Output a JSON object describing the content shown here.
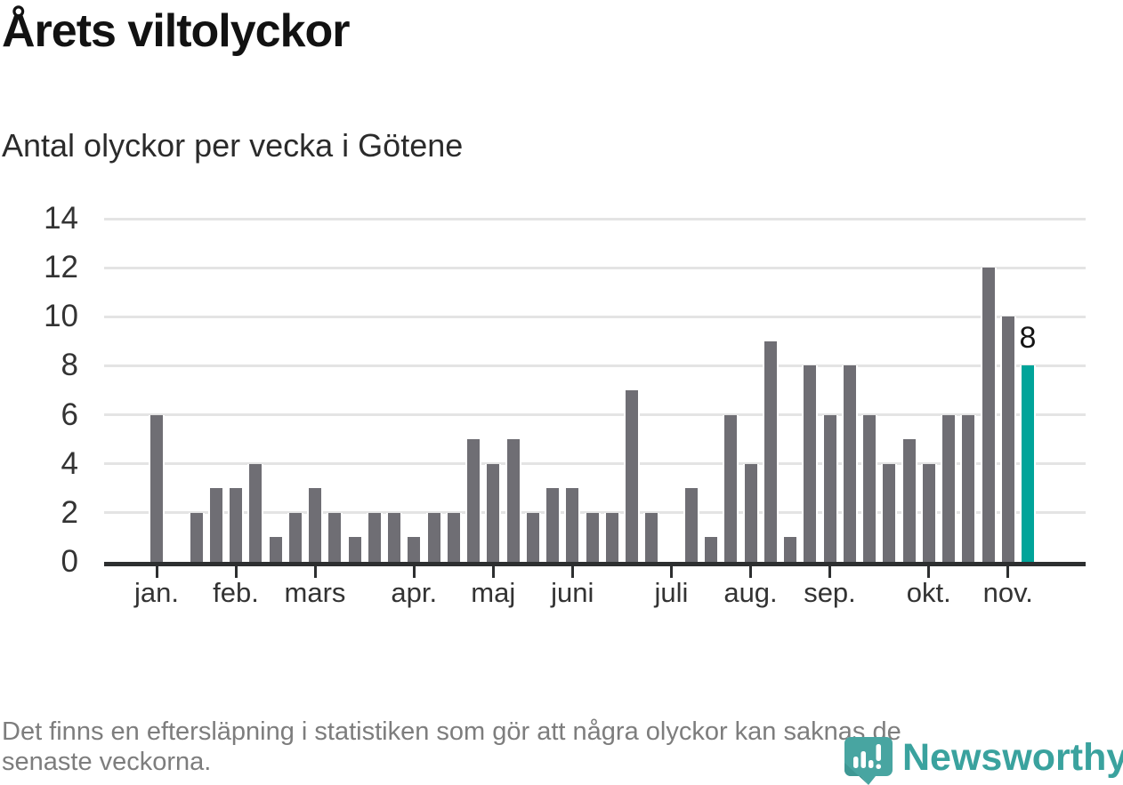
{
  "title": "Årets viltolyckor",
  "subtitle": "Antal olyckor per vecka i Götene",
  "footnote": {
    "lines": [
      "Det finns en eftersläpning i statistiken som gör att några olyckor kan saknas de",
      "senaste veckorna."
    ]
  },
  "logo": {
    "text": "Newsworthy"
  },
  "colors": {
    "bar": "#6f6e74",
    "highlight": "#00a49a",
    "axis": "#2d2f30",
    "grid": "#e4e4e4",
    "text": "#333333",
    "muted": "#7d7d7d",
    "logo": "#3aa29e",
    "title": "#121212"
  },
  "chart_data": {
    "type": "bar",
    "title": "Årets viltolyckor",
    "subtitle": "Antal olyckor per vecka i Götene",
    "xlabel": "",
    "ylabel": "",
    "x_unit": "vecka (weekly bars, Jan–Nov)",
    "ylim": [
      0,
      14
    ],
    "yticks": [
      0,
      2,
      4,
      6,
      8,
      10,
      12,
      14
    ],
    "grid": "horizontal",
    "legend": "none",
    "values": [
      6,
      0,
      2,
      3,
      3,
      4,
      1,
      2,
      3,
      2,
      1,
      2,
      2,
      1,
      2,
      2,
      5,
      4,
      5,
      2,
      3,
      3,
      2,
      2,
      7,
      2,
      0,
      3,
      1,
      6,
      4,
      9,
      1,
      8,
      6,
      8,
      6,
      4,
      5,
      4,
      6,
      6,
      12,
      10,
      8
    ],
    "months": [
      {
        "label": "jan.",
        "start_week": 1
      },
      {
        "label": "feb.",
        "start_week": 5
      },
      {
        "label": "mars",
        "start_week": 9
      },
      {
        "label": "apr.",
        "start_week": 14
      },
      {
        "label": "maj",
        "start_week": 18
      },
      {
        "label": "juni",
        "start_week": 22
      },
      {
        "label": "juli",
        "start_week": 27
      },
      {
        "label": "aug.",
        "start_week": 31
      },
      {
        "label": "sep.",
        "start_week": 35
      },
      {
        "label": "okt.",
        "start_week": 40
      },
      {
        "label": "nov.",
        "start_week": 44
      }
    ],
    "highlight": {
      "index": 44,
      "value": 8,
      "label": "8"
    }
  }
}
